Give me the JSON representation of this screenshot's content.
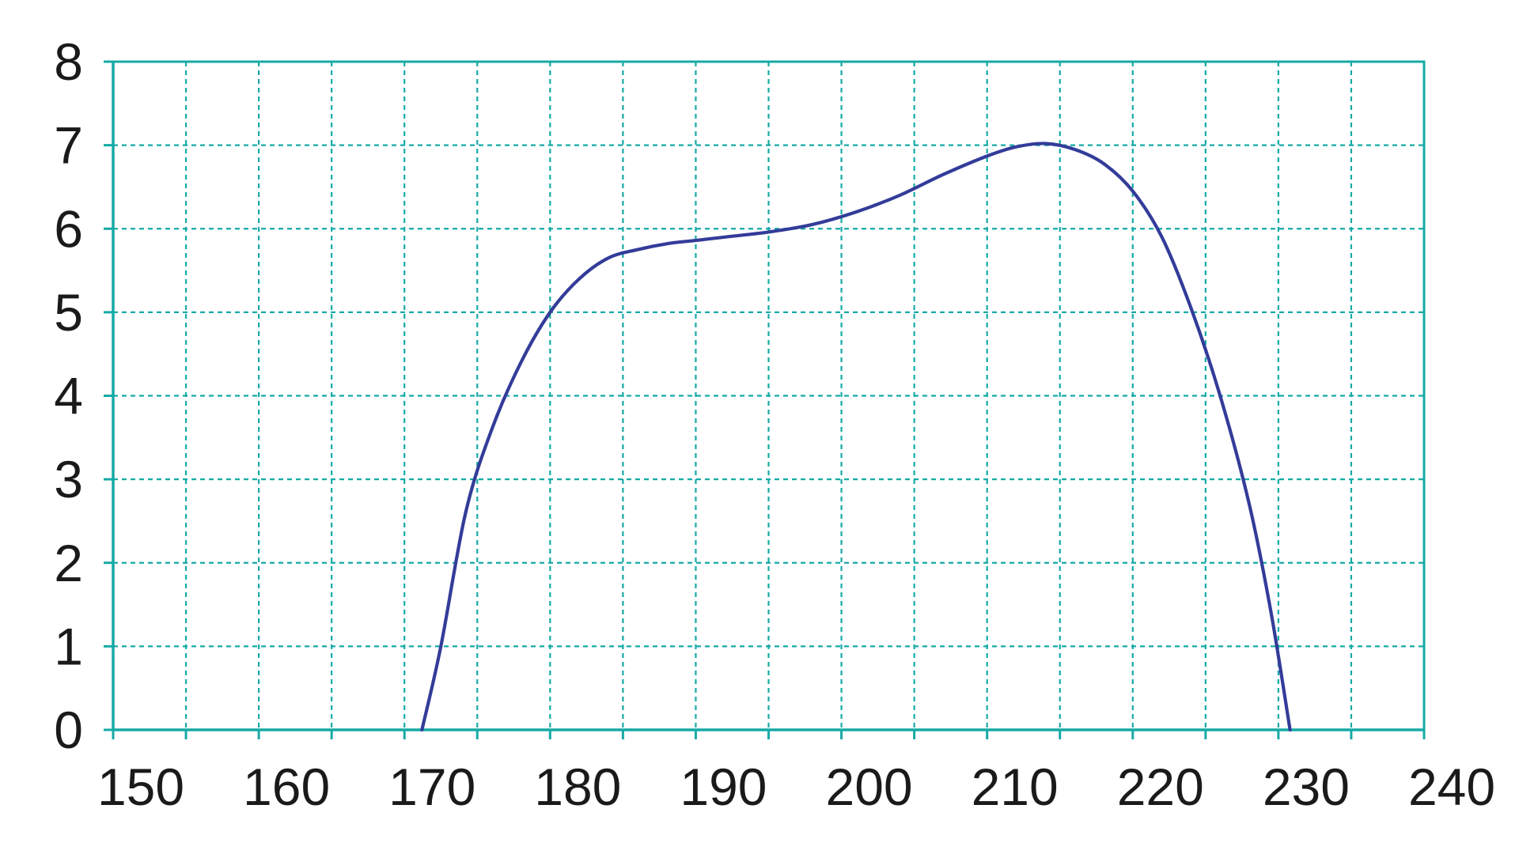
{
  "chart_data": {
    "type": "line",
    "title": "",
    "xlabel": "",
    "ylabel": "",
    "xlim": [
      150,
      240
    ],
    "ylim": [
      0,
      8
    ],
    "grid": true,
    "grid_style": "dashed",
    "colors": {
      "line": "#333C99",
      "grid": "#16AAA6",
      "axis": "#16AAA6",
      "text": "#1a1a1a"
    },
    "x_ticks": [
      150,
      160,
      170,
      180,
      190,
      200,
      210,
      220,
      230,
      240
    ],
    "x_tick_labels": [
      "150",
      "160",
      "170",
      "180",
      "190",
      "200",
      "210",
      "220",
      "230",
      "240"
    ],
    "y_ticks": [
      0,
      1,
      2,
      3,
      4,
      5,
      6,
      7,
      8
    ],
    "y_tick_labels": [
      "0",
      "1",
      "2",
      "3",
      "4",
      "5",
      "6",
      "7",
      "8"
    ],
    "series": [
      {
        "points": [
          [
            171.2,
            0
          ],
          [
            172.5,
            1.0
          ],
          [
            174.2,
            2.6
          ],
          [
            176,
            3.6
          ],
          [
            178,
            4.4
          ],
          [
            180,
            5.0
          ],
          [
            182,
            5.4
          ],
          [
            184,
            5.65
          ],
          [
            186,
            5.75
          ],
          [
            188,
            5.82
          ],
          [
            190,
            5.86
          ],
          [
            192,
            5.9
          ],
          [
            195,
            5.96
          ],
          [
            198,
            6.05
          ],
          [
            201,
            6.2
          ],
          [
            204,
            6.4
          ],
          [
            207,
            6.65
          ],
          [
            210,
            6.87
          ],
          [
            212,
            6.98
          ],
          [
            214,
            7.02
          ],
          [
            216,
            6.95
          ],
          [
            218,
            6.78
          ],
          [
            220,
            6.45
          ],
          [
            222,
            5.9
          ],
          [
            224,
            5.05
          ],
          [
            226,
            4.0
          ],
          [
            228,
            2.7
          ],
          [
            229.5,
            1.4
          ],
          [
            230.8,
            0
          ]
        ]
      }
    ]
  }
}
